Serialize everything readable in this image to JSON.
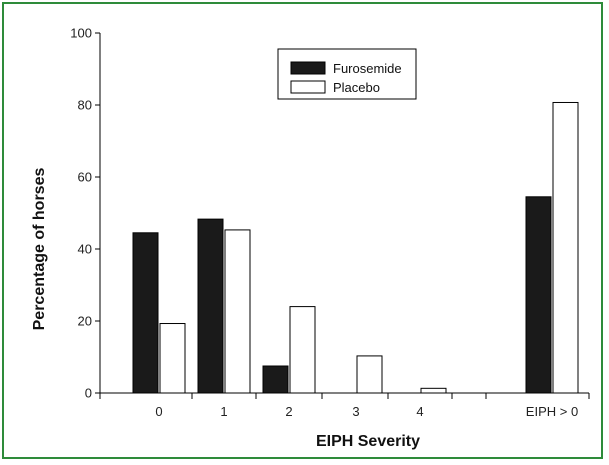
{
  "chart_data": {
    "type": "bar",
    "title": "",
    "xlabel": "EIPH Severity",
    "ylabel": "Percentage of horses",
    "categories": [
      "0",
      "1",
      "2",
      "3",
      "4",
      "EIPH > 0"
    ],
    "series": [
      {
        "name": "Furosemide",
        "values": [
          44.5,
          48.3,
          7.5,
          0,
          0,
          54.5
        ],
        "color": "#1a1a1a"
      },
      {
        "name": "Placebo",
        "values": [
          19.3,
          45.3,
          24.0,
          10.3,
          1.3,
          80.7
        ],
        "color": "#ffffff"
      }
    ],
    "ylim": [
      0,
      100
    ],
    "yticks": [
      0,
      20,
      40,
      60,
      80,
      100
    ],
    "grid": false,
    "legend_position": "top-center",
    "frame_color": "#2e8b3a"
  }
}
